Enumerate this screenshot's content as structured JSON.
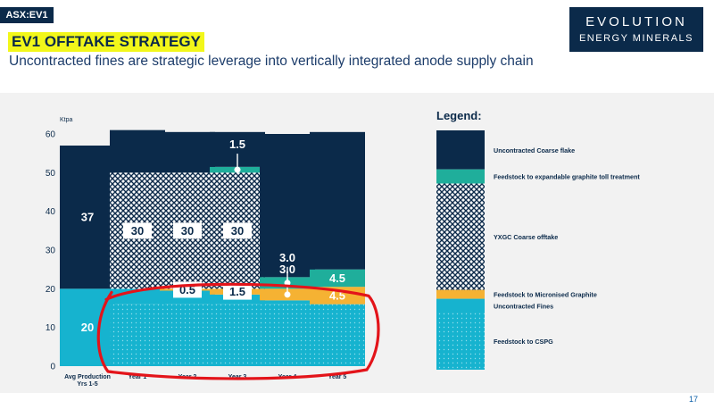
{
  "header": {
    "tag": "ASX:EV1",
    "title": "EV1 OFFTAKE STRATEGY",
    "subtitle": "Uncontracted fines are strategic leverage into vertically integrated anode supply chain"
  },
  "logo": {
    "line1": "EVOLUTION",
    "line2": "ENERGY MINERALS"
  },
  "page_number": "17",
  "colors": {
    "navy": "#0b2a4a",
    "teal": "#1fae9b",
    "cyan": "#16b3cf",
    "orange": "#f5b233",
    "highlight": "#f2f71a",
    "annotation_red": "#e3141a",
    "panel_bg": "#f2f2f2"
  },
  "chart_data": {
    "type": "bar",
    "stacked": true,
    "ylabel": "Ktpa",
    "ylim": [
      0,
      60
    ],
    "yticks": [
      0,
      10,
      20,
      30,
      40,
      50,
      60
    ],
    "categories": [
      "Avg Production\nYrs 1-5",
      "Year 1",
      "Year 2",
      "Year 3",
      "Year 4",
      "Year 5"
    ],
    "series": [
      {
        "name": "Feedstock to CSPG",
        "key": "cspg",
        "color": "#16b3cf",
        "pattern": "dots",
        "values": [
          0,
          16,
          16,
          16,
          16,
          16
        ]
      },
      {
        "name": "Uncontracted Fines",
        "key": "ufines",
        "color": "#16b3cf",
        "pattern": "solid",
        "values": [
          20,
          4,
          3.5,
          2.5,
          1,
          0
        ]
      },
      {
        "name": "Feedstock to Micronised Graphite",
        "key": "micro",
        "color": "#f5b233",
        "pattern": "solid",
        "values": [
          0,
          0,
          0.5,
          1.5,
          3,
          4.5
        ]
      },
      {
        "name": "YXGC Coarse offtake",
        "key": "yxgc",
        "color": "#0b2a4a",
        "pattern": "cross",
        "values": [
          0,
          30,
          30,
          30,
          0,
          0
        ]
      },
      {
        "name": "Feedstock to expandable graphite toll treatment",
        "key": "expand",
        "color": "#1fae9b",
        "pattern": "solid",
        "values": [
          0,
          0,
          0,
          1.5,
          3,
          4.5
        ]
      },
      {
        "name": "Uncontracted Coarse flake",
        "key": "ucoarse",
        "color": "#0b2a4a",
        "pattern": "solid",
        "values": [
          37,
          11,
          10.5,
          9,
          37,
          35.5
        ]
      }
    ],
    "data_labels": [
      {
        "category": 0,
        "series": "ucoarse",
        "text": "37",
        "style": "plain"
      },
      {
        "category": 0,
        "series": "ufines",
        "text": "20",
        "style": "plain"
      },
      {
        "category": 1,
        "series": "yxgc",
        "text": "30",
        "style": "box"
      },
      {
        "category": 2,
        "series": "yxgc",
        "text": "30",
        "style": "box"
      },
      {
        "category": 3,
        "series": "yxgc",
        "text": "30",
        "style": "box"
      },
      {
        "category": 2,
        "series": "micro",
        "text": "0.5",
        "style": "box"
      },
      {
        "category": 3,
        "series": "micro",
        "text": "1.5",
        "style": "box"
      },
      {
        "category": 3,
        "series": "expand",
        "text": "1.5",
        "style": "callout"
      },
      {
        "category": 4,
        "series": "expand",
        "text": "3.0",
        "style": "callout"
      },
      {
        "category": 4,
        "series": "micro",
        "text": "3.0",
        "style": "callout"
      },
      {
        "category": 5,
        "series": "expand",
        "text": "4.5",
        "style": "plain"
      },
      {
        "category": 5,
        "series": "micro",
        "text": "4.5",
        "style": "plain"
      }
    ],
    "legend": {
      "title": "Legend:",
      "placement": "right",
      "order": [
        "ucoarse",
        "expand",
        "yxgc",
        "micro",
        "ufines",
        "cspg"
      ]
    },
    "annotation": {
      "shape": "hand-drawn ellipse",
      "color": "#e3141a",
      "around": "Feedstock to CSPG, Year 1 to Year 5"
    }
  }
}
